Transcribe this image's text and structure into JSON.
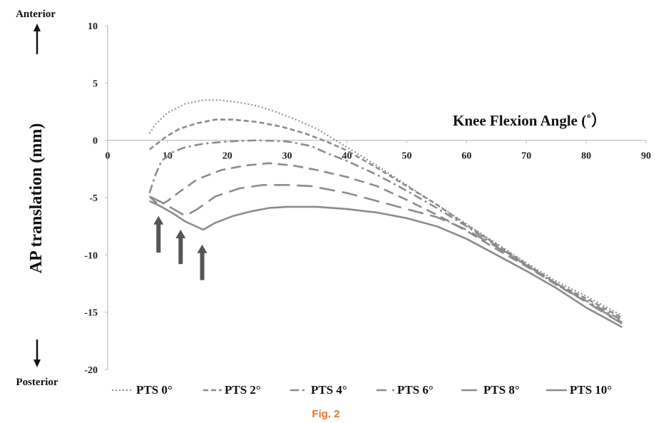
{
  "chart_data": {
    "type": "line",
    "xlabel": "Knee Flexion Angle (˚）",
    "ylabel": "AP translation  (mm)",
    "xlim": [
      0,
      90
    ],
    "ylim": [
      -20,
      10
    ],
    "x_ticks": [
      0,
      10,
      20,
      30,
      40,
      50,
      60,
      70,
      80,
      90
    ],
    "y_ticks": [
      10,
      5,
      0,
      -5,
      -10,
      -15,
      -20
    ],
    "grid": false,
    "legend_position": "bottom",
    "direction_labels": {
      "top": "Anterior",
      "bottom": "Posterior"
    },
    "caption": "Fig. 2",
    "series": [
      {
        "name": "PTS 0°",
        "style": "dotted",
        "color": "#8c8c8c",
        "x": [
          7,
          8,
          10,
          13,
          16,
          19,
          22,
          25,
          28,
          31,
          35,
          40,
          45,
          50,
          55,
          60,
          65,
          70,
          75,
          80,
          86
        ],
        "y": [
          0.6,
          1.4,
          2.4,
          3.2,
          3.5,
          3.5,
          3.3,
          3.0,
          2.5,
          1.9,
          1.0,
          -0.6,
          -2.2,
          -3.9,
          -5.6,
          -7.3,
          -9.0,
          -10.7,
          -12.3,
          -13.6,
          -15.3
        ]
      },
      {
        "name": "PTS 2°",
        "style": "dashed-short",
        "color": "#8c8c8c",
        "x": [
          7,
          8,
          10,
          12,
          15,
          18,
          21,
          25,
          29,
          33,
          37,
          40,
          45,
          50,
          55,
          60,
          65,
          70,
          75,
          80,
          86
        ],
        "y": [
          -0.8,
          -0.4,
          0.4,
          1.0,
          1.5,
          1.8,
          1.8,
          1.6,
          1.2,
          0.6,
          -0.2,
          -0.9,
          -2.4,
          -4.0,
          -5.6,
          -7.4,
          -9.1,
          -10.8,
          -12.5,
          -13.8,
          -15.5
        ]
      },
      {
        "name": "PTS 4°",
        "style": "dash-dot",
        "color": "#8c8c8c",
        "x": [
          7,
          8,
          9,
          11,
          13,
          16,
          20,
          25,
          30,
          34,
          37,
          40,
          45,
          50,
          55,
          60,
          65,
          70,
          75,
          80,
          86
        ],
        "y": [
          -4.6,
          -3.0,
          -1.8,
          -1.0,
          -0.6,
          -0.3,
          -0.1,
          0.0,
          -0.1,
          -0.5,
          -1.2,
          -1.8,
          -3.0,
          -4.4,
          -5.9,
          -7.5,
          -9.2,
          -10.9,
          -12.6,
          -14.0,
          -15.7
        ]
      },
      {
        "name": "PTS 6°",
        "style": "dashed-medium",
        "color": "#8c8c8c",
        "x": [
          7,
          8,
          9,
          10,
          12,
          15,
          19,
          23,
          27,
          31,
          35,
          40,
          45,
          50,
          55,
          60,
          65,
          70,
          75,
          80,
          86
        ],
        "y": [
          -4.9,
          -5.4,
          -5.6,
          -5.3,
          -4.5,
          -3.4,
          -2.6,
          -2.2,
          -2.0,
          -2.2,
          -2.6,
          -3.2,
          -4.0,
          -5.2,
          -6.5,
          -7.9,
          -9.5,
          -11.0,
          -12.6,
          -14.1,
          -15.9
        ]
      },
      {
        "name": "PTS 8°",
        "style": "dashed-long",
        "color": "#8c8c8c",
        "x": [
          7,
          9,
          11,
          13,
          15,
          18,
          22,
          26,
          30,
          34,
          40,
          45,
          50,
          55,
          60,
          65,
          70,
          75,
          80,
          86
        ],
        "y": [
          -4.9,
          -5.4,
          -6.0,
          -6.6,
          -6.0,
          -4.9,
          -4.2,
          -3.9,
          -3.9,
          -4.0,
          -4.6,
          -5.3,
          -6.0,
          -6.7,
          -7.8,
          -9.3,
          -10.9,
          -12.5,
          -14.1,
          -16.0
        ]
      },
      {
        "name": "PTS 10°",
        "style": "solid",
        "color": "#8c8c8c",
        "x": [
          7,
          9,
          11,
          13,
          16,
          18,
          21,
          24,
          27,
          30,
          35,
          40,
          45,
          50,
          55,
          60,
          65,
          70,
          75,
          80,
          86
        ],
        "y": [
          -5.3,
          -5.8,
          -6.4,
          -7.1,
          -7.8,
          -7.2,
          -6.6,
          -6.2,
          -5.9,
          -5.8,
          -5.8,
          -6.0,
          -6.3,
          -6.8,
          -7.5,
          -8.6,
          -10.0,
          -11.4,
          -12.9,
          -14.6,
          -16.3
        ]
      }
    ],
    "annotations": [
      {
        "type": "arrow",
        "x": 8.5,
        "tail_y": -9.8,
        "tip_y": -6.6
      },
      {
        "type": "arrow",
        "x": 12.2,
        "tail_y": -10.8,
        "tip_y": -7.8
      },
      {
        "type": "arrow",
        "x": 15.8,
        "tail_y": -12.2,
        "tip_y": -9.1
      }
    ]
  }
}
